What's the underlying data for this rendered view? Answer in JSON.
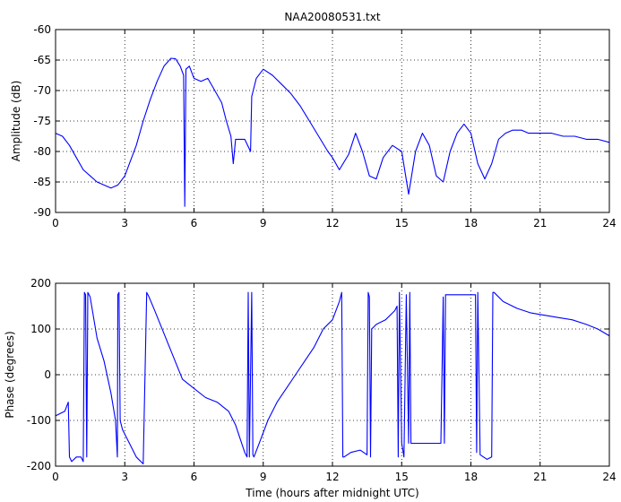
{
  "chart_data": [
    {
      "type": "line",
      "title": "NAA20080531.txt",
      "xlabel": "",
      "ylabel": "Amplitude (dB)",
      "xlim": [
        0,
        24
      ],
      "ylim": [
        -90,
        -60
      ],
      "xticks": [
        "0",
        "3",
        "6",
        "9",
        "12",
        "15",
        "18",
        "21",
        "24"
      ],
      "yticks": [
        "-60",
        "-65",
        "-70",
        "-75",
        "-80",
        "-85",
        "-90"
      ],
      "grid": true,
      "color": "#0000ff",
      "series": [
        {
          "x": [
            0,
            0.3,
            0.6,
            0.9,
            1.2,
            1.5,
            1.8,
            2.1,
            2.4,
            2.7,
            3.0,
            3.2,
            3.5,
            3.8,
            4.1,
            4.4,
            4.7,
            5.0,
            5.2,
            5.4,
            5.55,
            5.6,
            5.65,
            5.8,
            6.0,
            6.3,
            6.6,
            6.9,
            7.2,
            7.4,
            7.6,
            7.7,
            7.8,
            8.0,
            8.2,
            8.45,
            8.5,
            8.7,
            9.0,
            9.4,
            9.8,
            10.2,
            10.6,
            11.0,
            11.4,
            11.8,
            12.0,
            12.3,
            12.7,
            13.0,
            13.3,
            13.6,
            13.9,
            14.2,
            14.6,
            15.0,
            15.3,
            15.6,
            15.9,
            16.2,
            16.5,
            16.8,
            17.1,
            17.4,
            17.7,
            18.0,
            18.3,
            18.6,
            18.9,
            19.2,
            19.5,
            19.8,
            20.2,
            20.5,
            20.8,
            21.0,
            21.5,
            22.0,
            22.5,
            23.0,
            23.5,
            24.0
          ],
          "values": [
            -77,
            -77.5,
            -79,
            -81,
            -83,
            -84,
            -85,
            -85.5,
            -86,
            -85.5,
            -84,
            -82,
            -79,
            -75,
            -71.5,
            -68.5,
            -66,
            -64.7,
            -64.8,
            -66,
            -67.5,
            -89,
            -66.5,
            -66,
            -68,
            -68.5,
            -68,
            -70,
            -72,
            -75,
            -77.5,
            -82,
            -78,
            -78,
            -78,
            -80,
            -71,
            -68,
            -66.5,
            -67.5,
            -69,
            -70.5,
            -72.5,
            -75,
            -77.5,
            -80,
            -81,
            -83,
            -80.5,
            -77,
            -80,
            -84,
            -84.5,
            -81,
            -79,
            -80,
            -87,
            -80,
            -77,
            -79,
            -84,
            -85,
            -80,
            -77,
            -75.5,
            -77,
            -82,
            -84.5,
            -82,
            -78,
            -77,
            -76.5,
            -76.5,
            -77,
            -77,
            -77,
            -77,
            -77.5,
            -77.5,
            -78,
            -78,
            -78.5
          ]
        }
      ]
    },
    {
      "type": "line",
      "title": "",
      "xlabel": "Time (hours after midnight UTC)",
      "ylabel": "Phase (degrees)",
      "xlim": [
        0,
        24
      ],
      "ylim": [
        -200,
        200
      ],
      "xticks": [
        "0",
        "3",
        "6",
        "9",
        "12",
        "15",
        "18",
        "21",
        "24"
      ],
      "yticks": [
        "200",
        "100",
        "0",
        "-100",
        "-200"
      ],
      "grid": true,
      "color": "#0000ff",
      "series": [
        {
          "x": [
            0,
            0.4,
            0.55,
            0.6,
            0.7,
            0.9,
            1.1,
            1.2,
            1.25,
            1.3,
            1.35,
            1.4,
            1.45,
            1.5,
            1.8,
            2.1,
            2.4,
            2.6,
            2.68,
            2.7,
            2.75,
            2.8,
            2.9,
            3.2,
            3.5,
            3.8,
            3.95,
            4.0,
            4.05,
            4.3,
            4.7,
            5.1,
            5.5,
            6.0,
            6.5,
            7.0,
            7.5,
            7.8,
            8.0,
            8.2,
            8.3,
            8.35,
            8.4,
            8.5,
            8.55,
            8.6,
            8.9,
            9.2,
            9.6,
            10.0,
            10.4,
            10.8,
            11.2,
            11.6,
            12.0,
            12.3,
            12.4,
            12.45,
            12.5,
            12.8,
            13.2,
            13.5,
            13.55,
            13.6,
            13.65,
            13.7,
            13.9,
            14.3,
            14.7,
            14.8,
            14.85,
            14.9,
            15.0,
            15.1,
            15.2,
            15.3,
            15.35,
            15.4,
            15.6,
            16.0,
            16.4,
            16.7,
            16.8,
            16.85,
            16.9,
            17.2,
            17.6,
            18.0,
            18.2,
            18.25,
            18.3,
            18.4,
            18.7,
            18.9,
            18.95,
            19.0,
            19.4,
            20.0,
            20.6,
            21.2,
            21.8,
            22.4,
            23.0,
            23.5,
            24.0
          ],
          "values": [
            -90,
            -80,
            -60,
            -180,
            -190,
            -180,
            -180,
            -190,
            180,
            175,
            -180,
            180,
            175,
            170,
            80,
            30,
            -40,
            -100,
            -180,
            175,
            180,
            -100,
            -120,
            -150,
            -180,
            -195,
            180,
            175,
            170,
            140,
            90,
            40,
            -10,
            -30,
            -50,
            -60,
            -80,
            -110,
            -140,
            -170,
            -180,
            180,
            -180,
            180,
            -175,
            -180,
            -140,
            -100,
            -60,
            -30,
            0,
            30,
            60,
            100,
            120,
            160,
            180,
            -180,
            -180,
            -170,
            -165,
            -175,
            180,
            170,
            -180,
            100,
            110,
            120,
            140,
            150,
            -180,
            180,
            -150,
            -180,
            175,
            -150,
            180,
            -150,
            -150,
            -150,
            -150,
            -150,
            170,
            -150,
            175,
            175,
            175,
            175,
            175,
            -170,
            180,
            -175,
            -185,
            -180,
            180,
            180,
            160,
            145,
            135,
            130,
            125,
            120,
            110,
            100,
            85
          ]
        }
      ]
    }
  ]
}
